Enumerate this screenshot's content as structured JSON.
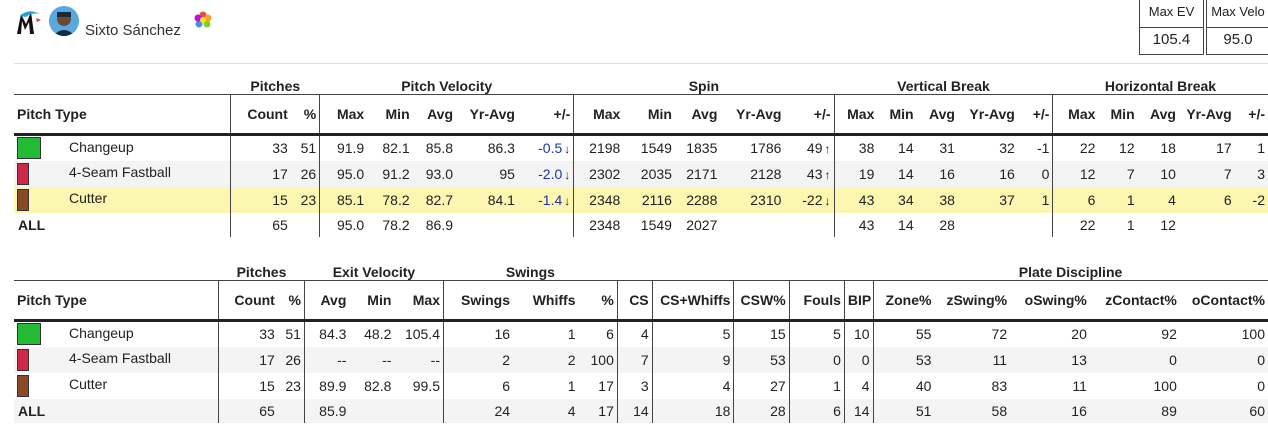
{
  "header": {
    "player_name": "Sixto Sánchez",
    "max_ev_label": "Max EV",
    "max_ev_value": "105.4",
    "max_velo_label": "Max Velo",
    "max_velo_value": "95.0",
    "logo_icon": "marlins-logo-icon",
    "badge_icon": "colorful-badge-icon"
  },
  "table1": {
    "groups": {
      "pitches": "Pitches",
      "velocity": "Pitch Velocity",
      "spin": "Spin",
      "vbreak": "Vertical Break",
      "hbreak": "Horizontal Break"
    },
    "columns": [
      "Pitch Type",
      "Count",
      "%",
      "Max",
      "Min",
      "Avg",
      "Yr-Avg",
      "+/-",
      "Max",
      "Min",
      "Avg",
      "Yr-Avg",
      "+/-",
      "Max",
      "Min",
      "Avg",
      "Yr-Avg",
      "+/-",
      "Max",
      "Min",
      "Avg",
      "Yr-Avg",
      "+/-"
    ],
    "rows": [
      {
        "name": "Changeup",
        "color": "#22bb33",
        "count": "33",
        "pct": "51",
        "v_max": "91.9",
        "v_min": "82.1",
        "v_avg": "85.8",
        "v_yr": "86.3",
        "v_diff": "-0.5",
        "v_arrow": "↓",
        "s_max": "2198",
        "s_min": "1549",
        "s_avg": "1835",
        "s_yr": "1786",
        "s_diff": "49",
        "s_arrow": "↑",
        "vb_max": "38",
        "vb_min": "14",
        "vb_avg": "31",
        "vb_yr": "32",
        "vb_diff": "-1",
        "hb_max": "22",
        "hb_min": "12",
        "hb_avg": "18",
        "hb_yr": "17",
        "hb_diff": "1"
      },
      {
        "name": "4-Seam Fastball",
        "color": "#d0284b",
        "count": "17",
        "pct": "26",
        "v_max": "95.0",
        "v_min": "91.2",
        "v_avg": "93.0",
        "v_yr": "95",
        "v_diff": "-2.0",
        "v_arrow": "↓",
        "s_max": "2302",
        "s_min": "2035",
        "s_avg": "2171",
        "s_yr": "2128",
        "s_diff": "43",
        "s_arrow": "↑",
        "vb_max": "19",
        "vb_min": "14",
        "vb_avg": "16",
        "vb_yr": "16",
        "vb_diff": "0",
        "hb_max": "12",
        "hb_min": "7",
        "hb_avg": "10",
        "hb_yr": "7",
        "hb_diff": "3"
      },
      {
        "name": "Cutter",
        "color": "#8a4a25",
        "count": "15",
        "pct": "23",
        "v_max": "85.1",
        "v_min": "78.2",
        "v_avg": "82.7",
        "v_yr": "84.1",
        "v_diff": "-1.4",
        "v_arrow": "↓",
        "s_max": "2348",
        "s_min": "2116",
        "s_avg": "2288",
        "s_yr": "2310",
        "s_diff": "-22",
        "s_arrow": "↓",
        "vb_max": "43",
        "vb_min": "34",
        "vb_avg": "38",
        "vb_yr": "37",
        "vb_diff": "1",
        "hb_max": "6",
        "hb_min": "1",
        "hb_avg": "4",
        "hb_yr": "6",
        "hb_diff": "-2"
      }
    ],
    "total": {
      "name": "ALL",
      "count": "65",
      "v_max": "95.0",
      "v_min": "78.2",
      "v_avg": "86.9",
      "s_max": "2348",
      "s_min": "1549",
      "s_avg": "2027",
      "vb_max": "43",
      "vb_min": "14",
      "vb_avg": "28",
      "hb_max": "22",
      "hb_min": "1",
      "hb_avg": "12"
    }
  },
  "table2": {
    "groups": {
      "pitches": "Pitches",
      "exit": "Exit Velocity",
      "swings": "Swings",
      "plate": "Plate Discipline"
    },
    "columns": [
      "Pitch Type",
      "Count",
      "%",
      "Avg",
      "Min",
      "Max",
      "Swings",
      "Whiffs",
      "%",
      "CS",
      "CS+Whiffs",
      "CSW%",
      "Fouls",
      "BIP",
      "Zone%",
      "zSwing%",
      "oSwing%",
      "zContact%",
      "oContact%"
    ],
    "rows": [
      {
        "name": "Changeup",
        "color": "#22bb33",
        "count": "33",
        "pct": "51",
        "e_avg": "84.3",
        "e_min": "48.2",
        "e_max": "105.4",
        "swings": "16",
        "whiffs": "1",
        "w_pct": "6",
        "cs": "4",
        "csw": "5",
        "csw_pct": "15",
        "fouls": "5",
        "bip": "10",
        "zone": "55",
        "zswing": "72",
        "oswing": "20",
        "zcontact": "92",
        "ocontact": "100"
      },
      {
        "name": "4-Seam Fastball",
        "color": "#d0284b",
        "count": "17",
        "pct": "26",
        "e_avg": "--",
        "e_min": "--",
        "e_max": "--",
        "swings": "2",
        "whiffs": "2",
        "w_pct": "100",
        "cs": "7",
        "csw": "9",
        "csw_pct": "53",
        "fouls": "0",
        "bip": "0",
        "zone": "53",
        "zswing": "11",
        "oswing": "13",
        "zcontact": "0",
        "ocontact": "0"
      },
      {
        "name": "Cutter",
        "color": "#8a4a25",
        "count": "15",
        "pct": "23",
        "e_avg": "89.9",
        "e_min": "82.8",
        "e_max": "99.5",
        "swings": "6",
        "whiffs": "1",
        "w_pct": "17",
        "cs": "3",
        "csw": "4",
        "csw_pct": "27",
        "fouls": "1",
        "bip": "4",
        "zone": "40",
        "zswing": "83",
        "oswing": "11",
        "zcontact": "100",
        "ocontact": "0"
      }
    ],
    "total": {
      "name": "ALL",
      "count": "65",
      "e_avg": "85.9",
      "swings": "24",
      "whiffs": "4",
      "w_pct": "17",
      "cs": "14",
      "csw": "18",
      "csw_pct": "28",
      "fouls": "6",
      "bip": "14",
      "zone": "51",
      "zswing": "58",
      "oswing": "16",
      "zcontact": "89",
      "ocontact": "60"
    }
  }
}
